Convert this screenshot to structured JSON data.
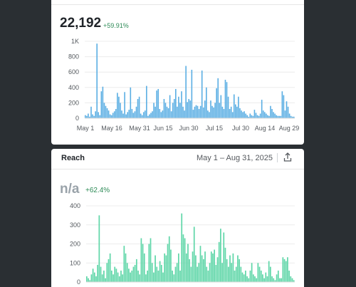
{
  "card1": {
    "metric_value": "22,192",
    "metric_delta": "+59.91%",
    "chart_data": {
      "type": "bar",
      "ylim": [
        0,
        1000
      ],
      "y_ticks": [
        "0",
        "200",
        "400",
        "600",
        "800",
        "1K"
      ],
      "x_tick_labels": [
        "May 1",
        "May 16",
        "May 31",
        "Jun 15",
        "Jun 30",
        "Jul 15",
        "Jul 30",
        "Aug 14",
        "Aug 29"
      ],
      "values": [
        40,
        30,
        60,
        20,
        150,
        50,
        30,
        90,
        970,
        80,
        40,
        350,
        410,
        200,
        160,
        130,
        100,
        50,
        40,
        70,
        90,
        120,
        330,
        280,
        200,
        100,
        60,
        340,
        50,
        80,
        110,
        400,
        120,
        70,
        90,
        150,
        250,
        280,
        60,
        40,
        80,
        100,
        420,
        30,
        50,
        70,
        90,
        200,
        150,
        360,
        380,
        120,
        80,
        100,
        250,
        200,
        150,
        130,
        300,
        90,
        200,
        250,
        380,
        150,
        280,
        200,
        350,
        150,
        100,
        680,
        210,
        250,
        230,
        630,
        110,
        150,
        170,
        160,
        120,
        160,
        620,
        140,
        230,
        400,
        100,
        80,
        230,
        160,
        140,
        200,
        390,
        520,
        200,
        300,
        150,
        120,
        500,
        470,
        280,
        120,
        150,
        80,
        310,
        180,
        150,
        280,
        130,
        100,
        80,
        90,
        60,
        40,
        20,
        60,
        40,
        30,
        110,
        70,
        40,
        30,
        60,
        240,
        100,
        80,
        60,
        40,
        30,
        160,
        120,
        80,
        60,
        40,
        30,
        30,
        30,
        350,
        300,
        100,
        220,
        150,
        60,
        30,
        20,
        20
      ]
    }
  },
  "card2": {
    "title": "Reach",
    "date_range": "May 1 – Aug 31, 2025",
    "share_icon": "share-icon",
    "metric_value": "n/a",
    "metric_delta": "+62.4%",
    "chart_data": {
      "type": "bar",
      "ylim": [
        0,
        400
      ],
      "y_ticks": [
        "0",
        "100",
        "200",
        "300",
        "400"
      ],
      "values": [
        30,
        20,
        10,
        40,
        70,
        50,
        30,
        90,
        350,
        80,
        40,
        60,
        20,
        100,
        120,
        150,
        60,
        40,
        80,
        70,
        50,
        30,
        60,
        40,
        190,
        150,
        100,
        70,
        50,
        60,
        80,
        90,
        120,
        60,
        40,
        230,
        200,
        150,
        40,
        60,
        200,
        230,
        100,
        50,
        140,
        80,
        60,
        110,
        90,
        50,
        150,
        140,
        200,
        240,
        170,
        60,
        40,
        80,
        100,
        150,
        60,
        360,
        250,
        230,
        150,
        200,
        120,
        80,
        160,
        290,
        140,
        80,
        100,
        190,
        140,
        120,
        160,
        80,
        60,
        100,
        160,
        150,
        170,
        90,
        130,
        210,
        280,
        100,
        260,
        180,
        120,
        80,
        140,
        100,
        150,
        60,
        80,
        140,
        120,
        80,
        50,
        40,
        60,
        30,
        20,
        60,
        100,
        40,
        30,
        20,
        100,
        80,
        60,
        40,
        20,
        50,
        30,
        110,
        80,
        30,
        20,
        10,
        40,
        60,
        20,
        20,
        130,
        120,
        110,
        130,
        60,
        30,
        20,
        10
      ]
    }
  }
}
